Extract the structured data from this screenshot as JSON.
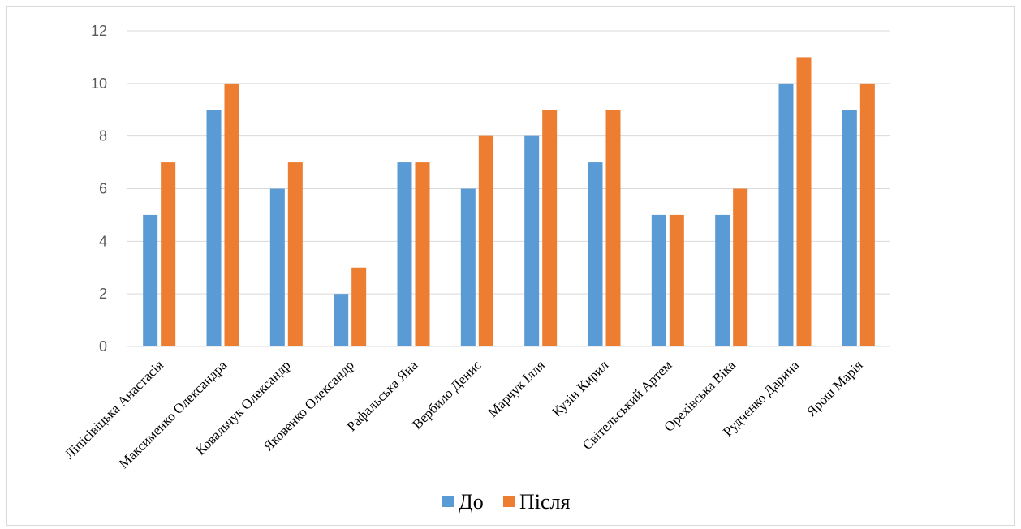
{
  "chart_data": {
    "type": "bar",
    "title": "",
    "xlabel": "",
    "ylabel": "",
    "ylim": [
      0,
      12
    ],
    "yticks": [
      0,
      2,
      4,
      6,
      8,
      10,
      12
    ],
    "grid": true,
    "legend_position": "bottom",
    "categories": [
      "Ліпісівіцька Анастасія",
      "Максименко Олександра",
      "Ковальчук Олександр",
      "Яковенко Олександр",
      "Рафальська Яна",
      "Вербило Денис",
      "Марчук Ілля",
      "Кузін Кирил",
      "Світельський Артем",
      "Орехівська Віка",
      "Рудченко Дарина",
      "Ярош Марія"
    ],
    "series": [
      {
        "name": "До",
        "color": "#5b9bd5",
        "values": [
          5,
          9,
          6,
          2,
          7,
          6,
          8,
          7,
          5,
          5,
          10,
          9
        ]
      },
      {
        "name": "Після",
        "color": "#ed7d31",
        "values": [
          7,
          10,
          7,
          3,
          7,
          8,
          9,
          9,
          5,
          6,
          11,
          10
        ]
      }
    ]
  }
}
